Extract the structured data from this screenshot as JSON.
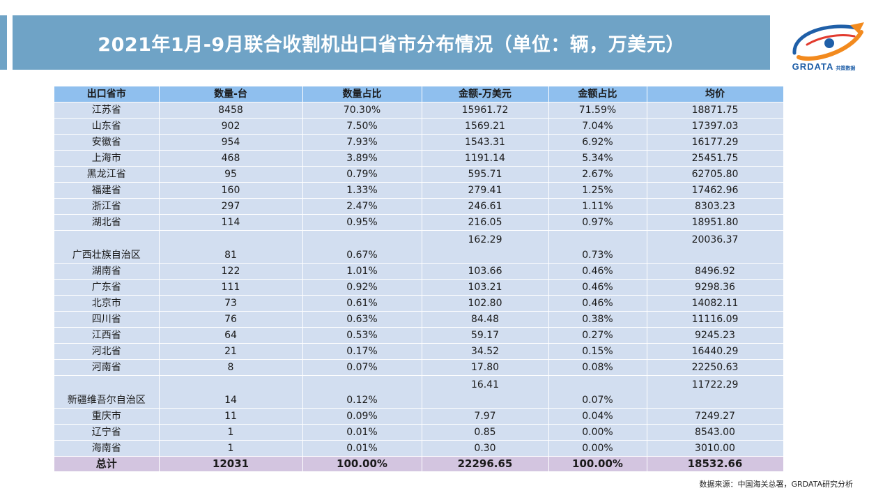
{
  "header": {
    "title": "2021年1月-9月联合收割机出口省市分布情况（单位：辆，万美元）"
  },
  "logo": {
    "text_en": "GRDATA",
    "text_cn": "共策数据",
    "colors": [
      "#1f5fa8",
      "#f28a1e",
      "#e23b2e"
    ]
  },
  "table": {
    "columns": [
      "出口省市",
      "数量-台",
      "数量占比",
      "金额-万美元",
      "金额占比",
      "均价"
    ],
    "rows": [
      [
        "江苏省",
        "8458",
        "70.30%",
        "15961.72",
        "71.59%",
        "18871.75"
      ],
      [
        "山东省",
        "902",
        "7.50%",
        "1569.21",
        "7.04%",
        "17397.03"
      ],
      [
        "安徽省",
        "954",
        "7.93%",
        "1543.31",
        "6.92%",
        "16177.29"
      ],
      [
        "上海市",
        "468",
        "3.89%",
        "1191.14",
        "5.34%",
        "25451.75"
      ],
      [
        "黑龙江省",
        "95",
        "0.79%",
        "595.71",
        "2.67%",
        "62705.80"
      ],
      [
        "福建省",
        "160",
        "1.33%",
        "279.41",
        "1.25%",
        "17462.96"
      ],
      [
        "浙江省",
        "297",
        "2.47%",
        "246.61",
        "1.11%",
        "8303.23"
      ],
      [
        "湖北省",
        "114",
        "0.95%",
        "216.05",
        "0.97%",
        "18951.80"
      ],
      [
        "广西壮族自治区",
        "81",
        "0.67%",
        "162.29",
        "0.73%",
        "20036.37"
      ],
      [
        "湖南省",
        "122",
        "1.01%",
        "103.66",
        "0.46%",
        "8496.92"
      ],
      [
        "广东省",
        "111",
        "0.92%",
        "103.21",
        "0.46%",
        "9298.36"
      ],
      [
        "北京市",
        "73",
        "0.61%",
        "102.80",
        "0.46%",
        "14082.11"
      ],
      [
        "四川省",
        "76",
        "0.63%",
        "84.48",
        "0.38%",
        "11116.09"
      ],
      [
        "江西省",
        "64",
        "0.53%",
        "59.17",
        "0.27%",
        "9245.23"
      ],
      [
        "河北省",
        "21",
        "0.17%",
        "34.52",
        "0.15%",
        "16440.29"
      ],
      [
        "河南省",
        "8",
        "0.07%",
        "17.80",
        "0.08%",
        "22250.63"
      ],
      [
        "新疆维吾尔自治区",
        "14",
        "0.12%",
        "16.41",
        "0.07%",
        "11722.29"
      ],
      [
        "重庆市",
        "11",
        "0.09%",
        "7.97",
        "0.04%",
        "7249.27"
      ],
      [
        "辽宁省",
        "1",
        "0.01%",
        "0.85",
        "0.00%",
        "8543.00"
      ],
      [
        "海南省",
        "1",
        "0.01%",
        "0.30",
        "0.00%",
        "3010.00"
      ]
    ],
    "total": [
      "总计",
      "12031",
      "100.00%",
      "22296.65",
      "100.00%",
      "18532.66"
    ]
  },
  "footer": {
    "source": "数据来源：中国海关总署，GRDATA研究分析"
  }
}
